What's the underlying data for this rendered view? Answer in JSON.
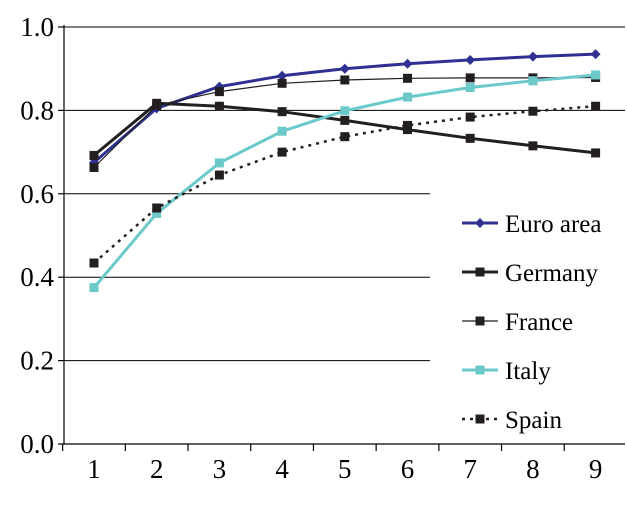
{
  "chart_data": {
    "type": "line",
    "title": "",
    "xlabel": "",
    "ylabel": "",
    "x": [
      1,
      2,
      3,
      4,
      5,
      6,
      7,
      8,
      9
    ],
    "x_tick_labels": [
      "1",
      "2",
      "3",
      "4",
      "5",
      "6",
      "7",
      "8",
      "9"
    ],
    "ylim": [
      0.0,
      1.0
    ],
    "y_ticks": [
      0.0,
      0.2,
      0.4,
      0.6,
      0.8,
      1.0
    ],
    "y_tick_labels": [
      "0.0",
      "0.2",
      "0.4",
      "0.6",
      "0.8",
      "1.0"
    ],
    "grid": "horizontal",
    "legend_position": "right",
    "series": [
      {
        "name": "Euro area",
        "values": [
          0.675,
          0.805,
          0.857,
          0.883,
          0.9,
          0.912,
          0.921,
          0.929,
          0.935
        ],
        "color": "#2e3192",
        "marker": "diamond",
        "dash": "solid",
        "width": 3
      },
      {
        "name": "Germany",
        "values": [
          0.692,
          0.817,
          0.81,
          0.797,
          0.776,
          0.754,
          0.733,
          0.715,
          0.698
        ],
        "color": "#231f20",
        "marker": "square",
        "dash": "solid",
        "width": 3
      },
      {
        "name": "France",
        "values": [
          0.663,
          0.812,
          0.845,
          0.865,
          0.873,
          0.877,
          0.878,
          0.878,
          0.879
        ],
        "color": "#231f20",
        "marker": "square",
        "dash": "solid",
        "width": 1.2
      },
      {
        "name": "Italy",
        "values": [
          0.375,
          0.553,
          0.674,
          0.75,
          0.799,
          0.832,
          0.855,
          0.871,
          0.885
        ],
        "color": "#6cc9c9",
        "marker": "square",
        "dash": "solid",
        "width": 3
      },
      {
        "name": "Spain",
        "values": [
          0.434,
          0.566,
          0.645,
          0.7,
          0.737,
          0.764,
          0.784,
          0.798,
          0.81
        ],
        "color": "#231f20",
        "marker": "square",
        "dash": "dotted",
        "width": 2.5
      }
    ]
  }
}
